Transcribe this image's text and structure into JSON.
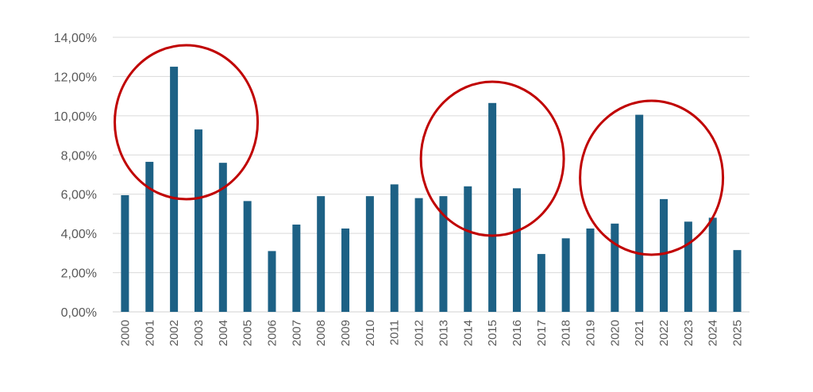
{
  "chart_data": {
    "type": "bar",
    "categories": [
      "2000",
      "2001",
      "2002",
      "2003",
      "2004",
      "2005",
      "2006",
      "2007",
      "2008",
      "2009",
      "2010",
      "2011",
      "2012",
      "2013",
      "2014",
      "2015",
      "2016",
      "2017",
      "2018",
      "2019",
      "2020",
      "2021",
      "2022",
      "2023",
      "2024",
      "2025"
    ],
    "values": [
      5.95,
      7.65,
      12.5,
      9.3,
      7.6,
      5.65,
      3.1,
      4.45,
      5.9,
      4.25,
      5.9,
      6.5,
      5.8,
      5.9,
      6.4,
      10.65,
      6.3,
      2.95,
      3.75,
      4.25,
      4.5,
      10.05,
      5.75,
      4.6,
      4.8,
      3.15
    ],
    "y_unit": "%",
    "ylim": [
      0,
      14
    ],
    "y_ticks": [
      "0,00%",
      "2,00%",
      "4,00%",
      "6,00%",
      "8,00%",
      "10,00%",
      "12,00%",
      "14,00%"
    ],
    "grid": true,
    "bar_color": "#1d6185",
    "annotations": {
      "type": "circles",
      "color": "#c00000",
      "highlighted_years": [
        [
          "2001",
          "2002",
          "2003",
          "2004"
        ],
        [
          "2014",
          "2015",
          "2016"
        ],
        [
          "2020",
          "2021",
          "2022",
          "2023"
        ]
      ]
    }
  }
}
